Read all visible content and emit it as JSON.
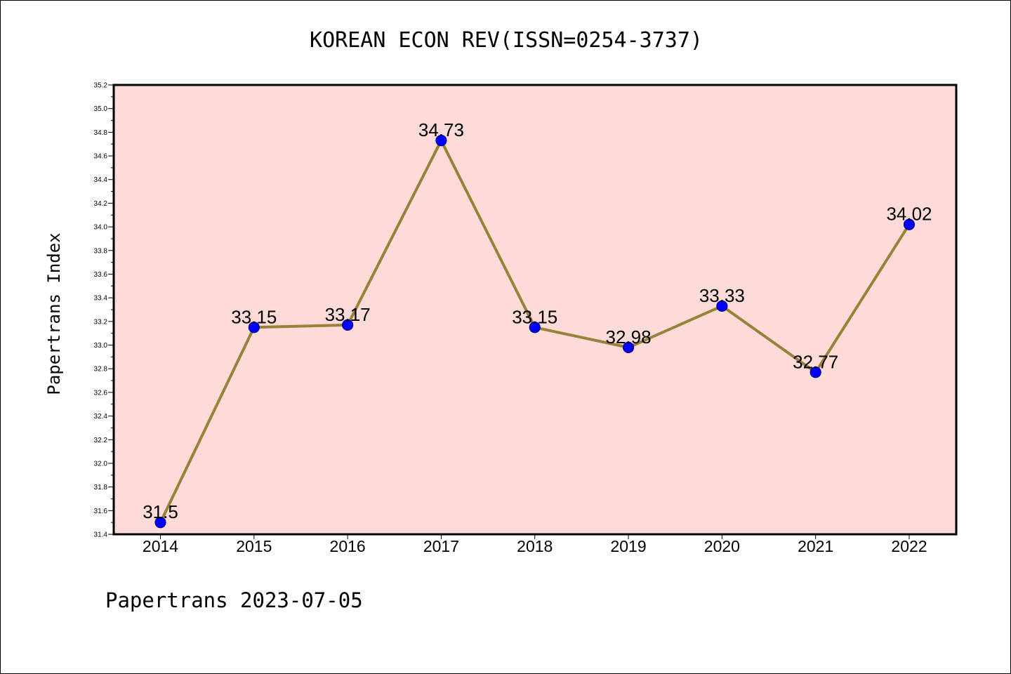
{
  "chart_data": {
    "type": "line",
    "title": "KOREAN ECON REV(ISSN=0254-3737)",
    "ylabel": "Papertrans Index",
    "xlabel": "",
    "footer": "Papertrans 2023-07-05",
    "categories": [
      "2014",
      "2015",
      "2016",
      "2017",
      "2018",
      "2019",
      "2020",
      "2021",
      "2022"
    ],
    "values": [
      31.5,
      33.15,
      33.17,
      34.73,
      33.15,
      32.98,
      33.33,
      32.77,
      34.02
    ],
    "data_labels": [
      "31.5",
      "33.15",
      "33.17",
      "34.73",
      "33.15",
      "32.98",
      "33.33",
      "32.77",
      "34.02"
    ],
    "ylim": [
      31.4,
      35.2
    ],
    "yticks": [
      "31.4",
      "31.6",
      "31.8",
      "32.0",
      "32.2",
      "32.4",
      "32.6",
      "32.8",
      "33.0",
      "33.2",
      "33.4",
      "33.6",
      "33.8",
      "34.0",
      "34.2",
      "34.4",
      "34.6",
      "34.8",
      "35.0",
      "35.2"
    ],
    "grid": false,
    "colors": {
      "plot_background": "#fddbd8",
      "line": "#9a8038",
      "marker_fill": "#0000ff",
      "marker_edge": "#00008b"
    }
  }
}
